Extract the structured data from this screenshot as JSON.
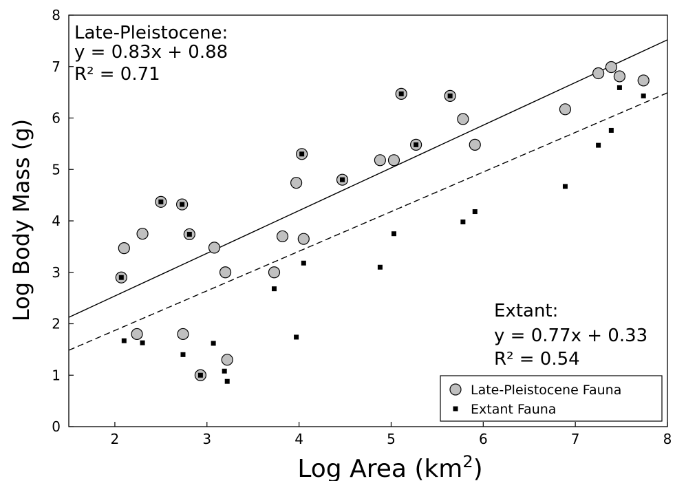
{
  "chart_data": {
    "type": "scatter",
    "xlabel": "Log Area (km",
    "xlabel_sup": "2",
    "xlabel_close": ")",
    "ylabel": "Log Body Mass (g)",
    "xlim": [
      1.5,
      8
    ],
    "ylim": [
      0,
      8
    ],
    "x_ticks": [
      2,
      3,
      4,
      5,
      6,
      7,
      8
    ],
    "y_ticks": [
      0,
      1,
      2,
      3,
      4,
      5,
      6,
      7,
      8
    ],
    "grid": false,
    "legend_position": "lower-right",
    "series": [
      {
        "name": "Late-Pleistocene Fauna",
        "marker": "circle",
        "color": "#c0c0c0",
        "points": [
          [
            2.07,
            2.9
          ],
          [
            2.1,
            3.47
          ],
          [
            2.24,
            1.8
          ],
          [
            2.3,
            3.75
          ],
          [
            2.5,
            4.37
          ],
          [
            2.73,
            4.32
          ],
          [
            2.74,
            1.8
          ],
          [
            2.81,
            3.74
          ],
          [
            2.93,
            1.0
          ],
          [
            3.08,
            3.48
          ],
          [
            3.2,
            3.0
          ],
          [
            3.22,
            1.3
          ],
          [
            3.73,
            3.0
          ],
          [
            3.82,
            3.7
          ],
          [
            3.97,
            4.74
          ],
          [
            4.03,
            5.3
          ],
          [
            4.05,
            3.65
          ],
          [
            4.47,
            4.8
          ],
          [
            4.88,
            5.18
          ],
          [
            5.03,
            5.18
          ],
          [
            5.11,
            6.47
          ],
          [
            5.27,
            5.48
          ],
          [
            5.64,
            6.43
          ],
          [
            5.78,
            5.98
          ],
          [
            5.91,
            5.48
          ],
          [
            6.89,
            6.17
          ],
          [
            7.25,
            6.87
          ],
          [
            7.39,
            6.99
          ],
          [
            7.48,
            6.81
          ],
          [
            7.74,
            6.73
          ]
        ]
      },
      {
        "name": "Extant Fauna",
        "marker": "square",
        "color": "#000000",
        "points": [
          [
            2.07,
            2.9
          ],
          [
            2.1,
            1.67
          ],
          [
            2.3,
            1.63
          ],
          [
            2.5,
            4.37
          ],
          [
            2.73,
            4.32
          ],
          [
            2.74,
            1.4
          ],
          [
            2.81,
            3.74
          ],
          [
            2.93,
            1.0
          ],
          [
            3.07,
            1.62
          ],
          [
            3.19,
            1.08
          ],
          [
            3.22,
            0.88
          ],
          [
            3.73,
            2.68
          ],
          [
            3.97,
            1.74
          ],
          [
            4.03,
            5.3
          ],
          [
            4.05,
            3.18
          ],
          [
            4.47,
            4.8
          ],
          [
            4.88,
            3.1
          ],
          [
            5.03,
            3.75
          ],
          [
            5.11,
            6.47
          ],
          [
            5.27,
            5.48
          ],
          [
            5.64,
            6.43
          ],
          [
            5.78,
            3.98
          ],
          [
            5.91,
            4.18
          ],
          [
            6.89,
            4.67
          ],
          [
            7.25,
            5.47
          ],
          [
            7.39,
            5.76
          ],
          [
            7.48,
            6.59
          ],
          [
            7.74,
            6.43
          ]
        ]
      }
    ],
    "fits": [
      {
        "name": "Late-Pleistocene fit",
        "slope": 0.83,
        "intercept": 0.88,
        "style": "solid"
      },
      {
        "name": "Extant fit",
        "slope": 0.77,
        "intercept": 0.33,
        "style": "dashed"
      }
    ],
    "annotations": {
      "late_pleistocene": {
        "line1": "Late-Pleistocene:",
        "line2": "y = 0.83x + 0.88",
        "line3": "R² = 0.71"
      },
      "extant": {
        "line1": "Extant:",
        "line2": "y = 0.77x + 0.33",
        "line3": "R² = 0.54"
      }
    },
    "legend": {
      "item1": "Late-Pleistocene Fauna",
      "item2": "Extant Fauna"
    }
  }
}
